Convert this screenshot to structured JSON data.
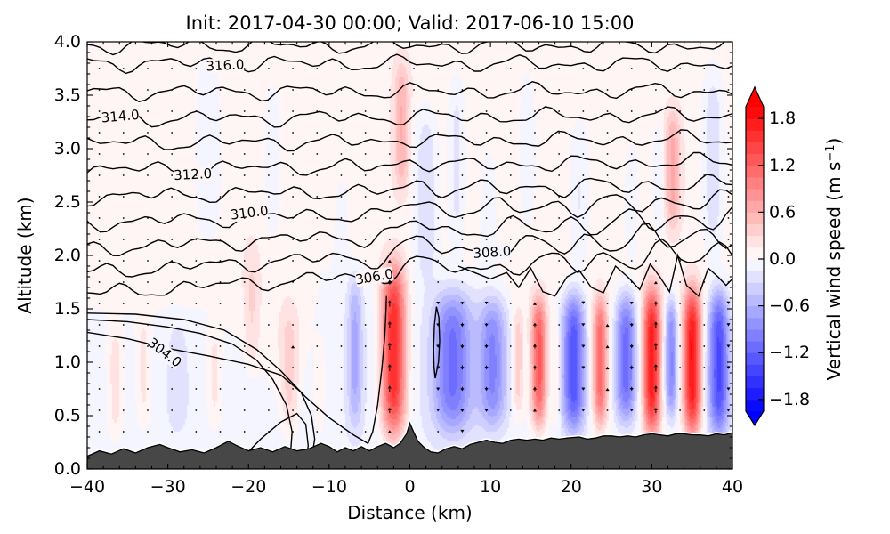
{
  "title": "Init: 2017-04-30 00:00; Valid: 2017-06-10 15:00",
  "axes": {
    "xlabel": "Distance (km)",
    "ylabel": "Altitude (km)",
    "xlim": [
      -40,
      40
    ],
    "ylim": [
      0.0,
      4.0
    ],
    "xticks": {
      "values": [
        -40,
        -30,
        -20,
        -10,
        0,
        10,
        20,
        30,
        40
      ],
      "labels": [
        "−40",
        "−30",
        "−20",
        "−10",
        "0",
        "10",
        "20",
        "30",
        "40"
      ],
      "minor_step": 2
    },
    "yticks": {
      "values": [
        0,
        0.5,
        1,
        1.5,
        2,
        2.5,
        3,
        3.5,
        4
      ],
      "labels": [
        "0.0",
        "0.5",
        "1.0",
        "1.5",
        "2.0",
        "2.5",
        "3.0",
        "3.5",
        "4.0"
      ],
      "minor_step": 0.1
    }
  },
  "colorbar": {
    "label_main": "Vertical wind speed (m s",
    "label_sup": "−1",
    "label_close": ")",
    "ticks": {
      "values": [
        1.8,
        1.2,
        0.6,
        0.0,
        -0.6,
        -1.2,
        -1.8
      ],
      "labels": [
        "1.8",
        "1.2",
        "0.6",
        "0.0",
        "−0.6",
        "−1.2",
        "−1.8"
      ]
    },
    "vmin": -1.95,
    "vmax": 1.95,
    "band_step": 0.15,
    "cmap": "bwr",
    "extend": "both"
  },
  "chart_data": {
    "type": "filled-contour-cross-section",
    "description": "Vertical cross-section: vertical wind speed shading (m/s), potential temperature contours (K), wind quiver, terrain silhouette",
    "contour_color": "#000000",
    "contour_label_texts": [
      "316.0",
      "314.0",
      "312.0",
      "310.0",
      "308.0",
      "306.0",
      "304.0"
    ],
    "theta_levels": [
      {
        "level": 317,
        "aL": 3.97,
        "aR": 3.96,
        "bump": 0,
        "ez": 0
      },
      {
        "level": 316,
        "aL": 3.8,
        "aR": 3.79,
        "bump": 0,
        "ez": 0
      },
      {
        "level": 315,
        "aL": 3.53,
        "aR": 3.54,
        "bump": 0,
        "ez": 0
      },
      {
        "level": 314,
        "aL": 3.28,
        "aR": 3.31,
        "bump": 0,
        "ez": 0
      },
      {
        "level": 313,
        "aL": 3.05,
        "aR": 3.09,
        "bump": 0.2,
        "ez": 0
      },
      {
        "level": 312,
        "aL": 2.8,
        "aR": 2.88,
        "bump": 0.4,
        "ez": 0
      },
      {
        "level": 311,
        "aL": 2.55,
        "aR": 2.67,
        "bump": 0.5,
        "ez": 0.3
      },
      {
        "level": 310,
        "aL": 2.3,
        "aR": 2.52,
        "bump": 0.7,
        "ez": 0.5
      },
      {
        "level": 309,
        "aL": 2.06,
        "aR": 2.36,
        "bump": 0.8,
        "ez": 0.7
      },
      {
        "level": 308,
        "aL": 1.84,
        "aR": 2.2,
        "bump": 1.0,
        "ez": 0.9
      },
      {
        "level": 307,
        "aL": 1.64,
        "aR": 2.04,
        "bump": 1.0,
        "ez": 1.0
      }
    ],
    "theta_wiggle": [
      [
        0.04,
        0.85,
        1.7
      ],
      [
        0.033,
        0.45,
        0.9
      ],
      [
        0.022,
        1.6,
        2.3
      ]
    ],
    "theta_special": {
      "c306_west": [
        [
          -40,
          1.46
        ],
        [
          -34,
          1.45
        ],
        [
          -28,
          1.4
        ],
        [
          -23,
          1.3
        ],
        [
          -19,
          1.12
        ],
        [
          -16,
          0.92
        ],
        [
          -13,
          0.68
        ],
        [
          -10,
          0.48
        ],
        [
          -7,
          0.32
        ],
        [
          -5.2,
          0.24
        ],
        [
          -4.6,
          0.35
        ],
        [
          -4.0,
          0.6
        ],
        [
          -3.45,
          0.95
        ],
        [
          -3.1,
          1.25
        ],
        [
          -2.95,
          1.5
        ],
        [
          -2.9,
          1.62
        ]
      ],
      "c306_lens": [
        [
          3.15,
          0.85
        ],
        [
          3.55,
          1.0
        ],
        [
          3.7,
          1.2
        ],
        [
          3.6,
          1.42
        ],
        [
          3.3,
          1.52
        ],
        [
          3.05,
          1.35
        ],
        [
          2.95,
          1.12
        ],
        [
          3.0,
          0.95
        ]
      ],
      "c306_east": [
        [
          6,
          1.9
        ],
        [
          8,
          1.84
        ],
        [
          10,
          1.78
        ],
        [
          12,
          1.84
        ],
        [
          13.5,
          1.7
        ],
        [
          15,
          1.88
        ],
        [
          16.5,
          1.66
        ],
        [
          18,
          1.62
        ],
        [
          19.5,
          1.8
        ],
        [
          21,
          1.86
        ],
        [
          22.5,
          1.7
        ],
        [
          24,
          1.65
        ],
        [
          25.5,
          1.9
        ],
        [
          27,
          1.8
        ],
        [
          28.5,
          1.68
        ],
        [
          29.8,
          1.92
        ],
        [
          31,
          1.8
        ],
        [
          32.2,
          1.66
        ],
        [
          33.2,
          2.0
        ],
        [
          34.3,
          1.72
        ],
        [
          35.8,
          1.62
        ],
        [
          37,
          1.88
        ],
        [
          38.2,
          1.8
        ],
        [
          39.2,
          1.72
        ],
        [
          40,
          1.78
        ]
      ],
      "c305": [
        [
          -40,
          1.4
        ],
        [
          -35,
          1.38
        ],
        [
          -30,
          1.33
        ],
        [
          -26,
          1.27
        ],
        [
          -22,
          1.17
        ],
        [
          -19,
          1.02
        ],
        [
          -17,
          0.84
        ],
        [
          -15.3,
          0.6
        ],
        [
          -14.6,
          0.35
        ],
        [
          -14.8,
          0.14
        ]
      ],
      "c304": [
        [
          -40,
          1.28
        ],
        [
          -35,
          1.22
        ],
        [
          -30,
          1.13
        ],
        [
          -25,
          1.06
        ],
        [
          -20,
          0.98
        ],
        [
          -16,
          0.88
        ],
        [
          -13.5,
          0.72
        ],
        [
          -12.2,
          0.5
        ],
        [
          -11.8,
          0.28
        ],
        [
          -12.1,
          0.13
        ]
      ],
      "c303": [
        [
          -20.8,
          0.1
        ],
        [
          -18.5,
          0.28
        ],
        [
          -16,
          0.44
        ],
        [
          -14,
          0.52
        ],
        [
          -12.9,
          0.42
        ],
        [
          -12.6,
          0.22
        ],
        [
          -12.8,
          0.1
        ]
      ]
    },
    "contour_labels": [
      {
        "text": "316.0",
        "km": -22.9,
        "on_level": 316,
        "rot": -3
      },
      {
        "text": "314.0",
        "km": -35.9,
        "on_level": 314,
        "rot": -5
      },
      {
        "text": "312.0",
        "km": -26.9,
        "on_level": 312,
        "rot": -3
      },
      {
        "text": "310.0",
        "km": -19.9,
        "on_level": 310,
        "rot": -7
      },
      {
        "text": "308.0",
        "km": 10.2,
        "on_level": 308,
        "rot": -4
      },
      {
        "text": "306.0",
        "km": -4.4,
        "alt": 1.8,
        "rot": -10
      },
      {
        "text": "304.0",
        "km": -30.4,
        "alt": 1.09,
        "rot": 38
      }
    ],
    "w_stripes": [
      [
        -2.0,
        1.75,
        1.5,
        1.1,
        0.8
      ],
      [
        -6.8,
        -0.55,
        0.9,
        1.1,
        0.7
      ],
      [
        5.3,
        -1.0,
        2.4,
        1.0,
        0.65
      ],
      [
        10.3,
        -0.85,
        1.7,
        1.0,
        0.6
      ],
      [
        13.4,
        0.45,
        0.7,
        1.0,
        0.5
      ],
      [
        16.0,
        1.3,
        0.95,
        1.0,
        0.6
      ],
      [
        18.2,
        0.3,
        0.5,
        0.9,
        0.5
      ],
      [
        20.3,
        -1.3,
        1.4,
        1.0,
        0.65
      ],
      [
        23.6,
        1.2,
        0.95,
        1.0,
        0.6
      ],
      [
        26.8,
        -1.1,
        1.3,
        1.05,
        0.6
      ],
      [
        30.0,
        1.8,
        1.1,
        1.0,
        0.68
      ],
      [
        32.4,
        -0.9,
        0.8,
        1.05,
        0.55
      ],
      [
        35.0,
        1.85,
        1.1,
        1.0,
        0.68
      ],
      [
        38.3,
        -1.35,
        1.3,
        1.0,
        0.68
      ],
      [
        -36.5,
        0.32,
        1.1,
        0.8,
        0.55
      ],
      [
        -33.0,
        0.28,
        1.0,
        0.9,
        0.55
      ],
      [
        -28.8,
        -0.18,
        1.1,
        0.9,
        0.5
      ],
      [
        -24.2,
        0.28,
        1.0,
        0.85,
        0.5
      ],
      [
        -19.6,
        0.22,
        0.9,
        1.5,
        0.6
      ],
      [
        -15.0,
        0.3,
        1.0,
        0.9,
        0.6
      ],
      [
        -11.2,
        0.22,
        0.8,
        0.8,
        0.5
      ]
    ],
    "w_upper_streaks": [
      [
        -25,
        -0.26,
        1.6,
        3.0,
        0.9
      ],
      [
        -17,
        -0.2,
        1.2,
        2.9,
        0.8
      ],
      [
        -8.5,
        -0.16,
        1.0,
        2.3,
        0.5
      ],
      [
        -1.0,
        0.5,
        0.9,
        3.2,
        0.6
      ],
      [
        2.0,
        -0.38,
        1.5,
        2.6,
        0.8
      ],
      [
        5.8,
        -0.3,
        1.1,
        2.9,
        0.8
      ],
      [
        9.8,
        -0.24,
        1.0,
        2.4,
        0.6
      ],
      [
        14.6,
        -0.2,
        1.2,
        3.0,
        0.8
      ],
      [
        21.0,
        -0.26,
        1.3,
        2.6,
        0.7
      ],
      [
        27.5,
        -0.2,
        1.0,
        2.5,
        0.6
      ],
      [
        30.8,
        -0.2,
        0.8,
        2.7,
        0.6
      ],
      [
        32.6,
        0.55,
        0.9,
        2.8,
        0.55
      ],
      [
        37.6,
        -0.36,
        1.4,
        2.9,
        0.9
      ]
    ],
    "w_base": {
      "pink_amp": 0.11,
      "blue_amp_west": -0.11,
      "blue_amp_east": -0.05,
      "east_taper": [
        8,
        14
      ],
      "transition_alt_profile": [
        [
          -40,
          1.5
        ],
        [
          -24,
          1.5
        ],
        [
          -14,
          0.45
        ],
        [
          -11,
          1.85
        ],
        [
          8,
          1.85
        ],
        [
          14,
          1.5
        ],
        [
          40,
          1.5
        ]
      ],
      "smooth": 0.18
    },
    "terrain": {
      "color": "#474747",
      "points": [
        [
          -40,
          0.12
        ],
        [
          -38.5,
          0.17
        ],
        [
          -37,
          0.14
        ],
        [
          -35.5,
          0.19
        ],
        [
          -34,
          0.15
        ],
        [
          -32.5,
          0.2
        ],
        [
          -31,
          0.23
        ],
        [
          -30,
          0.2
        ],
        [
          -28.5,
          0.16
        ],
        [
          -27,
          0.18
        ],
        [
          -25.5,
          0.15
        ],
        [
          -24,
          0.2
        ],
        [
          -22.5,
          0.26
        ],
        [
          -21.5,
          0.22
        ],
        [
          -20,
          0.17
        ],
        [
          -18.5,
          0.2
        ],
        [
          -17,
          0.16
        ],
        [
          -15.5,
          0.21
        ],
        [
          -14,
          0.17
        ],
        [
          -12.5,
          0.19
        ],
        [
          -11,
          0.24
        ],
        [
          -10,
          0.21
        ],
        [
          -9,
          0.16
        ],
        [
          -8,
          0.2
        ],
        [
          -7,
          0.17
        ],
        [
          -6,
          0.21
        ],
        [
          -5,
          0.17
        ],
        [
          -4,
          0.21
        ],
        [
          -3,
          0.24
        ],
        [
          -2,
          0.2
        ],
        [
          -1.2,
          0.24
        ],
        [
          -0.4,
          0.33
        ],
        [
          0,
          0.43
        ],
        [
          0.4,
          0.36
        ],
        [
          1,
          0.26
        ],
        [
          1.8,
          0.2
        ],
        [
          2.6,
          0.16
        ],
        [
          3.5,
          0.15
        ],
        [
          4.5,
          0.19
        ],
        [
          5.5,
          0.21
        ],
        [
          6.5,
          0.19
        ],
        [
          7.5,
          0.23
        ],
        [
          8.5,
          0.25
        ],
        [
          9.5,
          0.27
        ],
        [
          10.5,
          0.25
        ],
        [
          11.5,
          0.24
        ],
        [
          12.5,
          0.27
        ],
        [
          13.5,
          0.28
        ],
        [
          14.5,
          0.27
        ],
        [
          15.5,
          0.28
        ],
        [
          16.5,
          0.27
        ],
        [
          17.5,
          0.29
        ],
        [
          18.5,
          0.28
        ],
        [
          19.5,
          0.29
        ],
        [
          21,
          0.3
        ],
        [
          22,
          0.28
        ],
        [
          23,
          0.29
        ],
        [
          24,
          0.31
        ],
        [
          25,
          0.31
        ],
        [
          26,
          0.3
        ],
        [
          27,
          0.31
        ],
        [
          28,
          0.3
        ],
        [
          29,
          0.32
        ],
        [
          30,
          0.33
        ],
        [
          31,
          0.32
        ],
        [
          32,
          0.31
        ],
        [
          33,
          0.33
        ],
        [
          34,
          0.33
        ],
        [
          35,
          0.32
        ],
        [
          36,
          0.32
        ],
        [
          37,
          0.31
        ],
        [
          38,
          0.33
        ],
        [
          39,
          0.32
        ],
        [
          40,
          0.34
        ]
      ]
    },
    "quiver": {
      "k0": -38.5,
      "dk": 3,
      "a0": 0.15,
      "da": 0.2,
      "scale": 5.5,
      "max_len": 10,
      "dot_threshold": 1.8,
      "color": "#000000"
    }
  }
}
